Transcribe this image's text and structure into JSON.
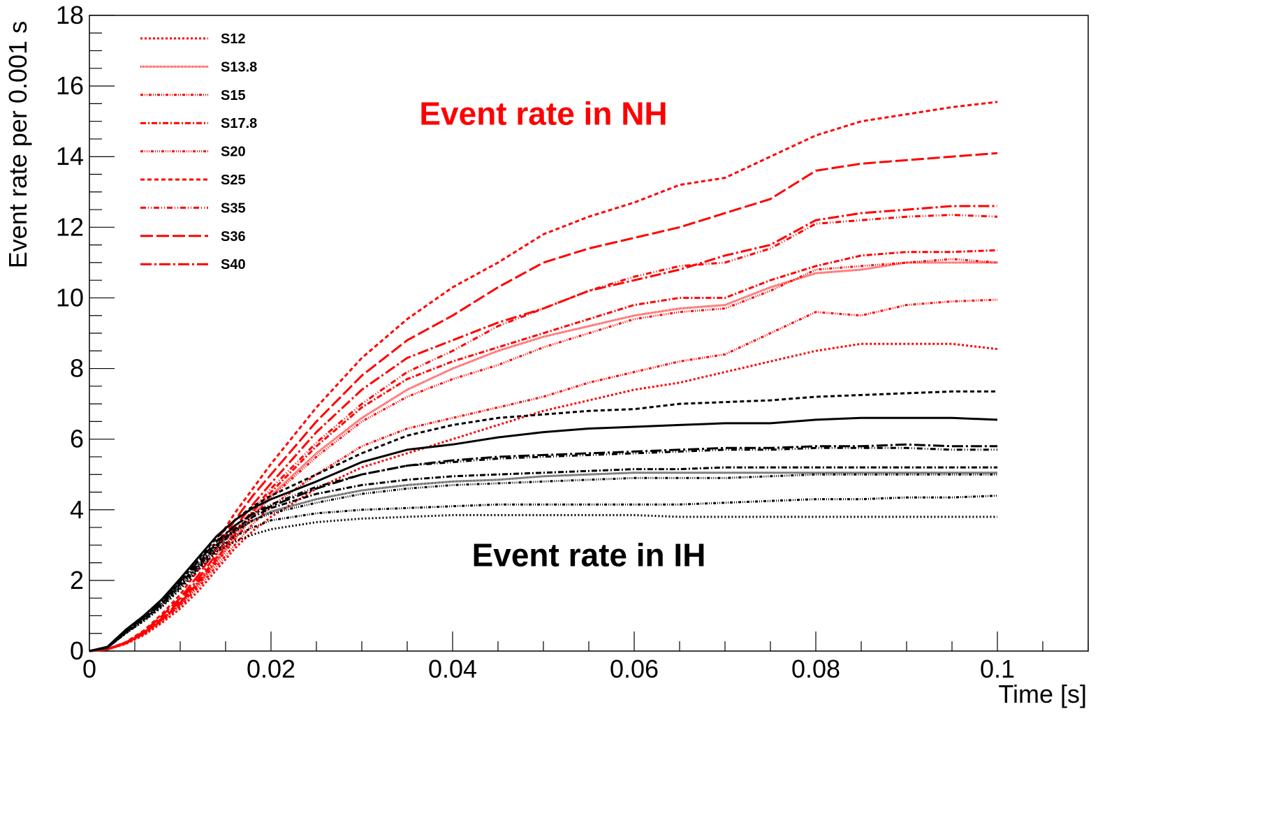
{
  "chart_data": {
    "type": "line",
    "title": "",
    "xlabel": "Time [s]",
    "ylabel": "Event rate per 0.001 s",
    "xlim": [
      0,
      0.11
    ],
    "ylim": [
      0,
      18
    ],
    "xticks": [
      0,
      0.02,
      0.04,
      0.06,
      0.08,
      0.1
    ],
    "xtick_labels": [
      "0",
      "0.02",
      "0.04",
      "0.06",
      "0.08",
      "0.1"
    ],
    "yticks": [
      0,
      2,
      4,
      6,
      8,
      10,
      12,
      14,
      16,
      18
    ],
    "ytick_labels": [
      "0",
      "2",
      "4",
      "6",
      "8",
      "10",
      "12",
      "14",
      "16",
      "18"
    ],
    "grid": false,
    "legend_position": "top-left",
    "annotations": [
      {
        "text": "Event rate in NH",
        "color": "#ff0000",
        "x": 0.05,
        "y": 14.9
      },
      {
        "text": "Event rate in IH",
        "color": "#000000",
        "x": 0.055,
        "y": 2.4
      }
    ],
    "x": [
      0,
      0.002,
      0.004,
      0.006,
      0.008,
      0.01,
      0.012,
      0.014,
      0.016,
      0.018,
      0.02,
      0.025,
      0.03,
      0.035,
      0.04,
      0.045,
      0.05,
      0.055,
      0.06,
      0.065,
      0.07,
      0.075,
      0.08,
      0.085,
      0.09,
      0.095,
      0.1
    ],
    "series": [
      {
        "name": "S12",
        "group": "NH",
        "color": "#ff0000",
        "dash": "3 3",
        "values": [
          0,
          0.05,
          0.2,
          0.45,
          0.8,
          1.2,
          1.7,
          2.3,
          2.9,
          3.4,
          3.8,
          4.6,
          5.2,
          5.6,
          6.0,
          6.4,
          6.8,
          7.1,
          7.4,
          7.6,
          7.9,
          8.2,
          8.5,
          8.7,
          8.7,
          8.7,
          8.55
        ]
      },
      {
        "name": "S13.8",
        "group": "NH",
        "color": "#ff0000",
        "dash": "1 1",
        "values": [
          0,
          0.05,
          0.22,
          0.5,
          0.88,
          1.33,
          1.9,
          2.55,
          3.2,
          3.85,
          4.4,
          5.6,
          6.6,
          7.4,
          8.0,
          8.5,
          8.9,
          9.2,
          9.5,
          9.7,
          9.8,
          10.3,
          10.7,
          10.8,
          11.0,
          11.0,
          11.0
        ]
      },
      {
        "name": "S15",
        "group": "NH",
        "color": "#ff0000",
        "dash": "4 2 1 2 1 2",
        "values": [
          0,
          0.05,
          0.21,
          0.47,
          0.84,
          1.27,
          1.8,
          2.4,
          3.0,
          3.6,
          4.1,
          5.0,
          5.8,
          6.3,
          6.6,
          6.9,
          7.2,
          7.6,
          7.9,
          8.2,
          8.4,
          9.0,
          9.6,
          9.5,
          9.8,
          9.9,
          9.95
        ]
      },
      {
        "name": "S17.8",
        "group": "NH",
        "color": "#ff0000",
        "dash": "8 3 2 3",
        "values": [
          0,
          0.05,
          0.22,
          0.5,
          0.9,
          1.35,
          1.95,
          2.6,
          3.3,
          3.95,
          4.5,
          5.8,
          6.9,
          7.7,
          8.2,
          8.6,
          9.0,
          9.4,
          9.8,
          10.0,
          10.0,
          10.5,
          10.9,
          11.2,
          11.3,
          11.3,
          11.35
        ]
      },
      {
        "name": "S20",
        "group": "NH",
        "color": "#ff0000",
        "dash": "4 2 1 2 1 2 1 2",
        "values": [
          0,
          0.05,
          0.22,
          0.49,
          0.87,
          1.3,
          1.88,
          2.5,
          3.15,
          3.8,
          4.35,
          5.5,
          6.5,
          7.2,
          7.7,
          8.1,
          8.6,
          9.0,
          9.4,
          9.6,
          9.7,
          10.2,
          10.8,
          10.9,
          11.0,
          11.1,
          11.0
        ]
      },
      {
        "name": "S25",
        "group": "NH",
        "color": "#ff0000",
        "dash": "6 4",
        "values": [
          0,
          0.06,
          0.25,
          0.58,
          1.05,
          1.6,
          2.3,
          3.1,
          3.9,
          4.6,
          5.3,
          6.9,
          8.3,
          9.4,
          10.3,
          11.0,
          11.8,
          12.3,
          12.7,
          13.2,
          13.4,
          14.0,
          14.6,
          15.0,
          15.2,
          15.4,
          15.55
        ]
      },
      {
        "name": "S35",
        "group": "NH",
        "color": "#ff0000",
        "dash": "8 3 1 3 1 3",
        "values": [
          0,
          0.05,
          0.22,
          0.5,
          0.9,
          1.37,
          1.98,
          2.65,
          3.35,
          4.0,
          4.6,
          5.9,
          7.0,
          7.9,
          8.5,
          9.2,
          9.7,
          10.2,
          10.6,
          10.9,
          11.0,
          11.4,
          12.1,
          12.2,
          12.3,
          12.35,
          12.3
        ]
      },
      {
        "name": "S36",
        "group": "NH",
        "color": "#ff0000",
        "dash": "18 5",
        "values": [
          0,
          0.06,
          0.24,
          0.55,
          1.0,
          1.5,
          2.15,
          2.9,
          3.7,
          4.4,
          5.0,
          6.5,
          7.8,
          8.8,
          9.5,
          10.3,
          11.0,
          11.4,
          11.7,
          12.0,
          12.4,
          12.8,
          13.6,
          13.8,
          13.9,
          14.0,
          14.1
        ]
      },
      {
        "name": "S40",
        "group": "NH",
        "color": "#ff0000",
        "dash": "16 4 3 4",
        "values": [
          0,
          0.05,
          0.23,
          0.52,
          0.93,
          1.42,
          2.05,
          2.75,
          3.5,
          4.15,
          4.75,
          6.2,
          7.4,
          8.3,
          8.8,
          9.3,
          9.7,
          10.2,
          10.5,
          10.8,
          11.2,
          11.5,
          12.2,
          12.4,
          12.5,
          12.6,
          12.6
        ]
      },
      {
        "name": "S12",
        "group": "IH",
        "color": "#000000",
        "dash": "2 3",
        "values": [
          0,
          0.1,
          0.5,
          0.85,
          1.25,
          1.75,
          2.3,
          2.8,
          3.1,
          3.3,
          3.45,
          3.65,
          3.75,
          3.8,
          3.85,
          3.85,
          3.85,
          3.85,
          3.85,
          3.8,
          3.8,
          3.8,
          3.8,
          3.8,
          3.8,
          3.8,
          3.8
        ]
      },
      {
        "name": "S13.8",
        "group": "IH",
        "color": "#000000",
        "dash": "1 1",
        "values": [
          0,
          0.1,
          0.52,
          0.9,
          1.33,
          1.85,
          2.4,
          2.95,
          3.4,
          3.7,
          3.95,
          4.3,
          4.55,
          4.7,
          4.8,
          4.85,
          4.95,
          5.0,
          5.05,
          5.05,
          5.05,
          5.05,
          5.05,
          5.05,
          5.05,
          5.05,
          5.05
        ]
      },
      {
        "name": "S15",
        "group": "IH",
        "color": "#000000",
        "dash": "4 2 1 2 1 2",
        "values": [
          0,
          0.1,
          0.5,
          0.87,
          1.28,
          1.8,
          2.35,
          2.85,
          3.25,
          3.5,
          3.7,
          3.9,
          4.0,
          4.05,
          4.1,
          4.15,
          4.15,
          4.15,
          4.15,
          4.15,
          4.2,
          4.25,
          4.3,
          4.3,
          4.35,
          4.35,
          4.4
        ]
      },
      {
        "name": "S17.8",
        "group": "IH",
        "color": "#000000",
        "dash": "8 3 2 3",
        "values": [
          0,
          0.1,
          0.53,
          0.92,
          1.35,
          1.9,
          2.45,
          3.0,
          3.45,
          3.8,
          4.05,
          4.45,
          4.7,
          4.85,
          4.95,
          5.0,
          5.05,
          5.1,
          5.15,
          5.15,
          5.2,
          5.2,
          5.2,
          5.2,
          5.2,
          5.2,
          5.2
        ]
      },
      {
        "name": "S20",
        "group": "IH",
        "color": "#000000",
        "dash": "4 2 1 2 1 2 1 2",
        "values": [
          0,
          0.1,
          0.52,
          0.9,
          1.32,
          1.85,
          2.4,
          2.95,
          3.38,
          3.7,
          3.9,
          4.2,
          4.45,
          4.6,
          4.7,
          4.75,
          4.8,
          4.85,
          4.9,
          4.9,
          4.9,
          4.95,
          5.0,
          5.0,
          5.0,
          5.0,
          5.0
        ]
      },
      {
        "name": "S25",
        "group": "IH",
        "color": "#000000",
        "dash": "6 4",
        "values": [
          0,
          0.12,
          0.6,
          1.0,
          1.45,
          2.0,
          2.6,
          3.2,
          3.7,
          4.1,
          4.4,
          5.0,
          5.6,
          6.1,
          6.4,
          6.6,
          6.7,
          6.8,
          6.85,
          7.0,
          7.05,
          7.1,
          7.2,
          7.25,
          7.3,
          7.35,
          7.35
        ]
      },
      {
        "name": "S35",
        "group": "IH",
        "color": "#000000",
        "dash": "8 3 1 3 1 3",
        "values": [
          0,
          0.11,
          0.55,
          0.95,
          1.38,
          1.95,
          2.5,
          3.05,
          3.55,
          3.9,
          4.15,
          4.65,
          5.0,
          5.25,
          5.35,
          5.45,
          5.5,
          5.55,
          5.6,
          5.65,
          5.7,
          5.7,
          5.75,
          5.75,
          5.75,
          5.7,
          5.7
        ]
      },
      {
        "name": "S36",
        "group": "IH",
        "color": "#000000",
        "dash": "",
        "values": [
          0,
          0.12,
          0.6,
          1.0,
          1.47,
          2.05,
          2.65,
          3.25,
          3.7,
          4.05,
          4.3,
          4.8,
          5.35,
          5.7,
          5.85,
          6.05,
          6.2,
          6.3,
          6.35,
          6.4,
          6.45,
          6.45,
          6.55,
          6.6,
          6.6,
          6.6,
          6.55
        ]
      },
      {
        "name": "S40",
        "group": "IH",
        "color": "#000000",
        "dash": "16 4 3 4",
        "values": [
          0,
          0.11,
          0.56,
          0.96,
          1.4,
          1.97,
          2.55,
          3.1,
          3.55,
          3.88,
          4.1,
          4.6,
          5.0,
          5.25,
          5.4,
          5.5,
          5.55,
          5.6,
          5.65,
          5.7,
          5.75,
          5.75,
          5.8,
          5.8,
          5.85,
          5.8,
          5.8
        ]
      }
    ],
    "legend": [
      {
        "label": "S12",
        "color": "#ff0000",
        "dash": "3 3"
      },
      {
        "label": "S13.8",
        "color": "#ff0000",
        "dash": "1 1"
      },
      {
        "label": "S15",
        "color": "#ff0000",
        "dash": "4 2 1 2 1 2"
      },
      {
        "label": "S17.8",
        "color": "#ff0000",
        "dash": "8 3 2 3"
      },
      {
        "label": "S20",
        "color": "#ff0000",
        "dash": "4 2 1 2 1 2 1 2"
      },
      {
        "label": "S25",
        "color": "#ff0000",
        "dash": "6 4"
      },
      {
        "label": "S35",
        "color": "#ff0000",
        "dash": "8 3 1 3 1 3"
      },
      {
        "label": "S36",
        "color": "#ff0000",
        "dash": "18 5"
      },
      {
        "label": "S40",
        "color": "#ff0000",
        "dash": "16 4 3 4"
      }
    ]
  }
}
